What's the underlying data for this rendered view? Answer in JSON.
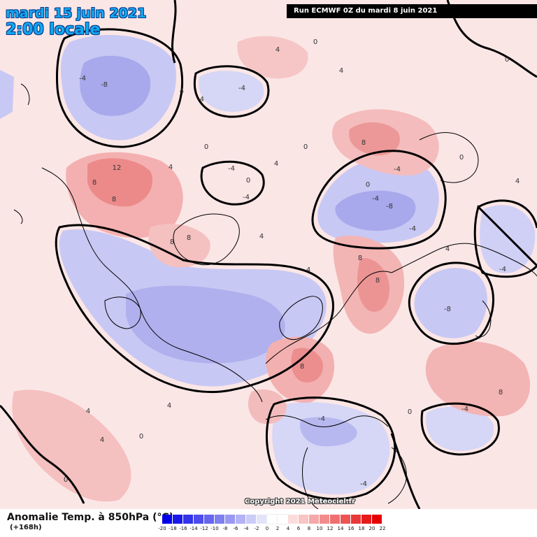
{
  "header": {
    "date_line": "mardi 15 juin 2021",
    "time_line": "2:00 locale",
    "run_info": "Run ECMWF 0Z du mardi 8 juin 2021"
  },
  "footer": {
    "title": "Anomalie Temp. à 850hPa (°C)",
    "lead_time": "(+168h)",
    "copyright": "Copyright 2021 Meteociel.fr"
  },
  "legend": {
    "ticks": [
      "-20",
      "-18",
      "-16",
      "-14",
      "-12",
      "-10",
      "-8",
      "-6",
      "-4",
      "-2",
      "0",
      "2",
      "4",
      "6",
      "8",
      "10",
      "12",
      "14",
      "16",
      "18",
      "20",
      "22"
    ],
    "colors": [
      "#0000e6",
      "#1a1ae8",
      "#3333ea",
      "#4d4dec",
      "#6666ee",
      "#7f7ff0",
      "#9999f3",
      "#b3b3f5",
      "#ccccf8",
      "#e3e3fb",
      "#ffffff",
      "#ffffff",
      "#fbdcdc",
      "#f8c4c4",
      "#f5a8a8",
      "#f28c8c",
      "#ef7070",
      "#ec5454",
      "#e93838",
      "#e61c1c",
      "#e60000"
    ]
  },
  "map": {
    "colors": {
      "background": "#fbe6e6",
      "cold_light": "#dcdcf8",
      "cold_mid": "#b4b4f0",
      "cold_strong": "#9a9aea",
      "warm_light": "#f6c8c8",
      "warm_mid": "#f0a2a2",
      "warm_strong": "#e88080",
      "coastline": "#000000"
    },
    "contour_labels": [
      "12",
      "8",
      "8",
      "8",
      "8",
      "8",
      "8",
      "8",
      "8",
      "8",
      "-8",
      "-8",
      "-8",
      "-4",
      "-4",
      "-4",
      "-4",
      "-4",
      "-4",
      "-4",
      "-4",
      "-4",
      "-4",
      "-4",
      "-4",
      "4",
      "4",
      "4",
      "4",
      "4",
      "4",
      "4",
      "4",
      "4",
      "4",
      "4",
      "4",
      "0",
      "0",
      "0",
      "0",
      "0",
      "0",
      "0",
      "0",
      "0",
      "0"
    ]
  }
}
